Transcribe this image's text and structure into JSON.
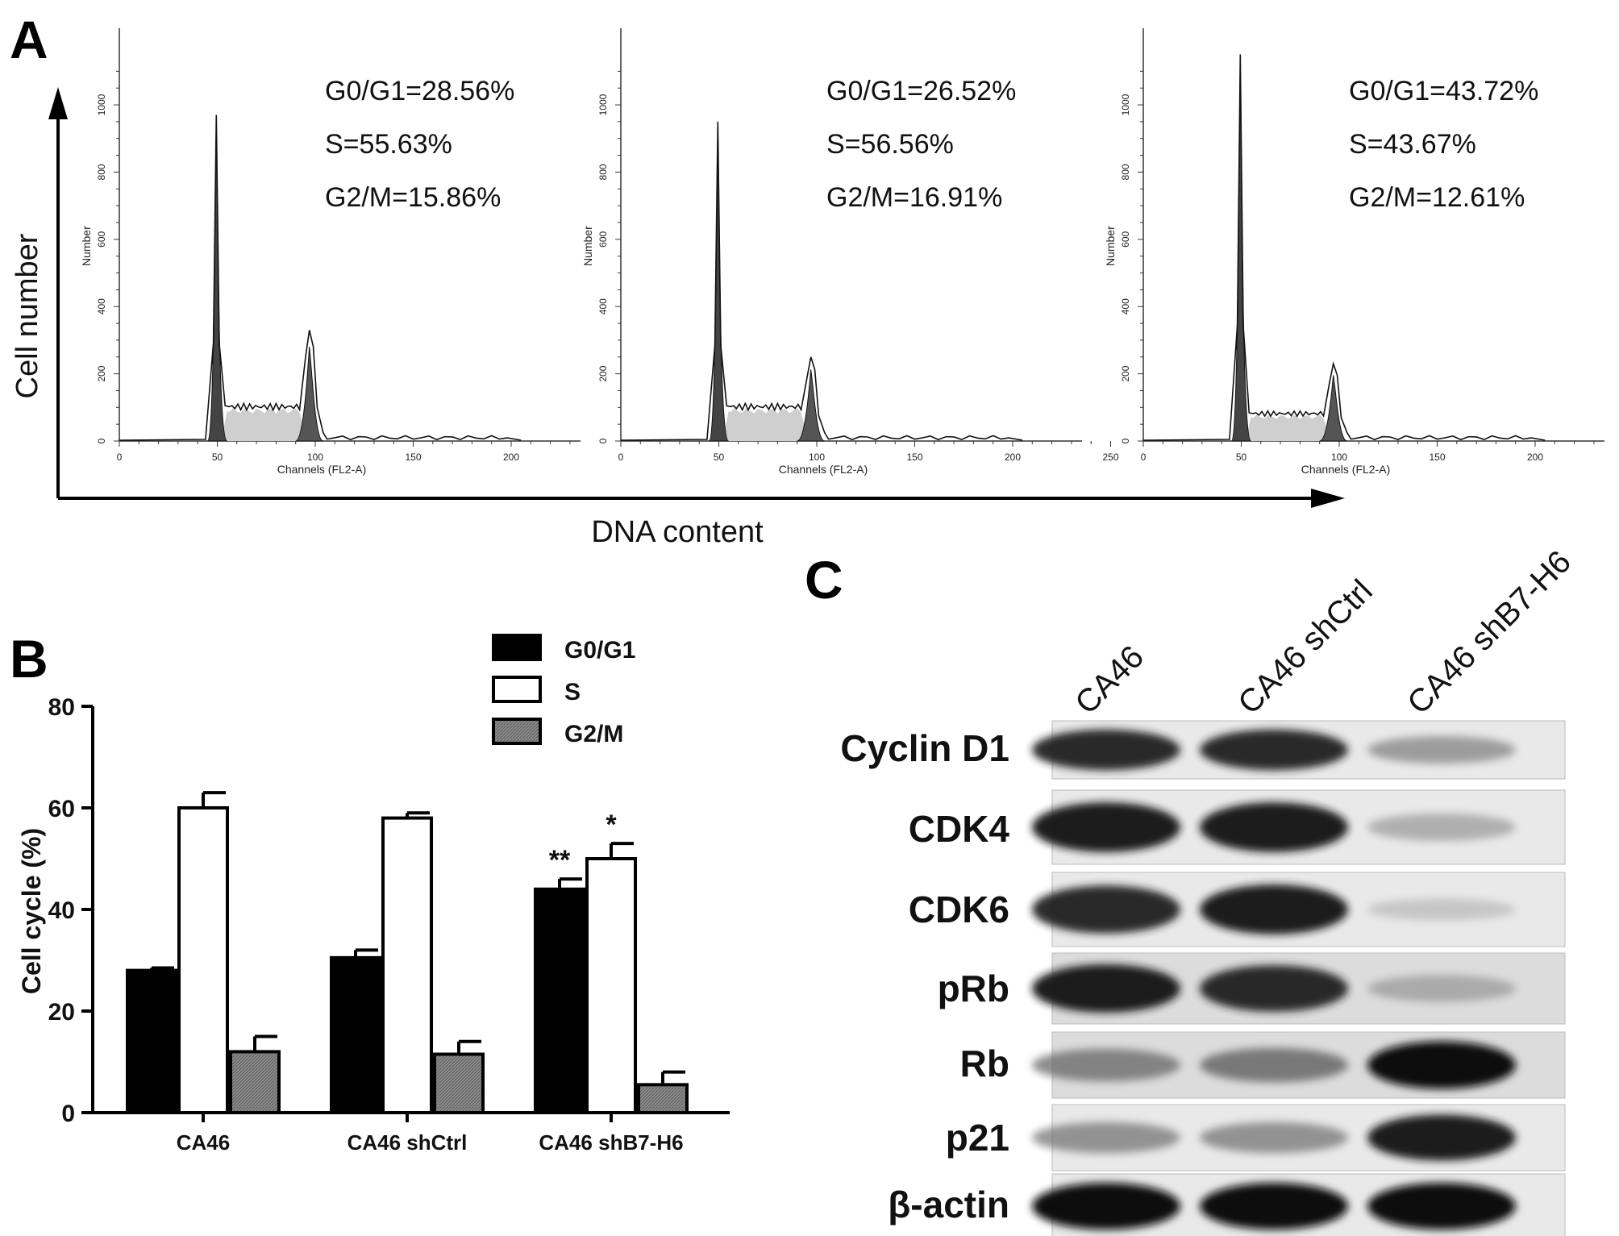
{
  "panels": {
    "a": "A",
    "b": "B",
    "c": "C"
  },
  "panel_a": {
    "ylabel": "Cell number",
    "xlabel": "DNA content",
    "hist_xlabel": "Channels (FL2-A)",
    "hist_ylabel": "Number",
    "x_ticks": [
      "0",
      "50",
      "100",
      "150",
      "200"
    ],
    "x_ticks_mid": [
      "0",
      "50",
      "100",
      "150",
      "200",
      "250"
    ],
    "y_ticks": [
      "0",
      "200",
      "400",
      "600",
      "800",
      "1000"
    ],
    "histograms": [
      {
        "g0g1": "G0/G1=28.56%",
        "s": "S=55.63%",
        "g2m": "G2/M=15.86%",
        "g1_peak": 970,
        "g2_peak": 330,
        "s_level": 100
      },
      {
        "g0g1": "G0/G1=26.52%",
        "s": "S=56.56%",
        "g2m": "G2/M=16.91%",
        "g1_peak": 950,
        "g2_peak": 250,
        "s_level": 100
      },
      {
        "g0g1": "G0/G1=43.72%",
        "s": "S=43.67%",
        "g2m": "G2/M=12.61%",
        "g1_peak": 1150,
        "g2_peak": 230,
        "s_level": 80
      }
    ]
  },
  "chart_data": {
    "type": "bar",
    "categories": [
      "CA46",
      "CA46 shCtrl",
      "CA46 shB7-H6"
    ],
    "series": [
      {
        "name": "G0/G1",
        "values": [
          28,
          30.5,
          44
        ],
        "errors": [
          0.5,
          1.5,
          2
        ],
        "color": "#000000"
      },
      {
        "name": "S",
        "values": [
          60,
          58,
          50
        ],
        "errors": [
          3,
          1,
          3
        ],
        "color": "#ffffff"
      },
      {
        "name": "G2/M",
        "values": [
          12,
          11.5,
          5.5
        ],
        "errors": [
          3,
          2.5,
          2.5
        ],
        "color": "#7a7a7a"
      }
    ],
    "ylabel": "Cell cycle (%)",
    "ylim": [
      0,
      80
    ],
    "yticks": [
      "0",
      "20",
      "40",
      "60",
      "80"
    ],
    "annotations": [
      {
        "text": "**",
        "category": 2,
        "series": 0
      },
      {
        "text": "*",
        "category": 2,
        "series": 1
      }
    ],
    "legend": "top-right"
  },
  "panel_c": {
    "lanes": [
      "CA46",
      "CA46 shCtrl",
      "CA46 shB7-H6"
    ],
    "proteins": [
      {
        "name": "Cyclin D1",
        "intensity": [
          0.9,
          0.9,
          0.45
        ]
      },
      {
        "name": "CDK4",
        "intensity": [
          0.95,
          0.95,
          0.35
        ]
      },
      {
        "name": "CDK6",
        "intensity": [
          0.9,
          0.95,
          0.2
        ]
      },
      {
        "name": "pRb",
        "intensity": [
          0.95,
          0.9,
          0.35
        ]
      },
      {
        "name": "Rb",
        "intensity": [
          0.55,
          0.6,
          1.0
        ]
      },
      {
        "name": "p21",
        "intensity": [
          0.5,
          0.5,
          0.95
        ]
      },
      {
        "name": "β-actin",
        "intensity": [
          1.0,
          1.0,
          1.0
        ]
      }
    ]
  }
}
